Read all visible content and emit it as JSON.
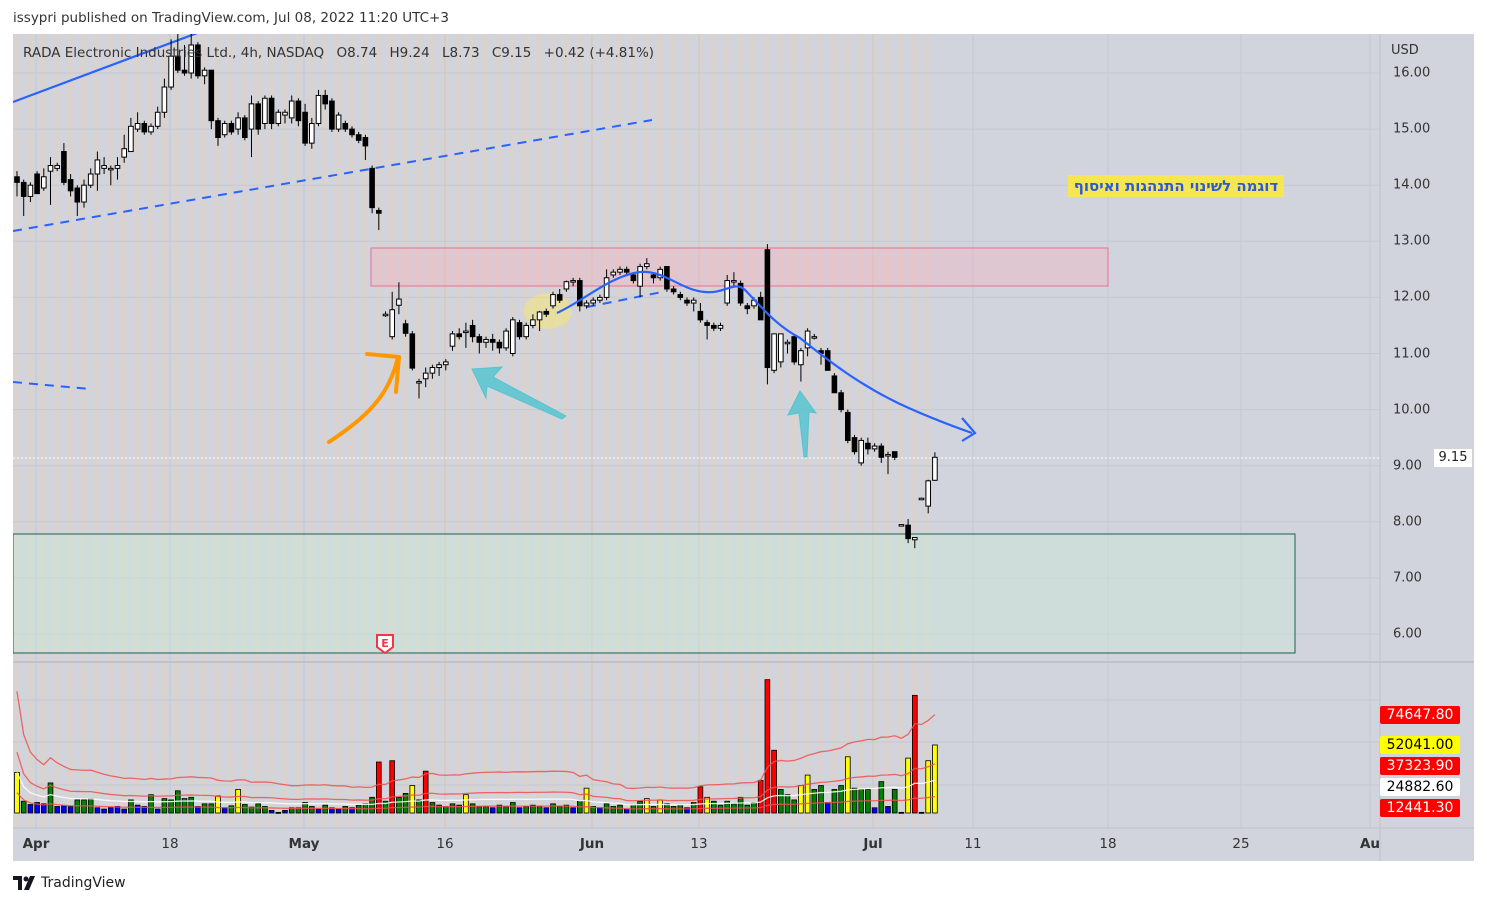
{
  "header": {
    "published": "issypri published on TradingView.com, Jul 08, 2022 11:20 UTC+3"
  },
  "legend": {
    "symbol": "RADA Electronic Industries Ltd., 4h, NASDAQ",
    "open": "O8.74",
    "high": "H9.24",
    "low": "L8.73",
    "close": "C9.15",
    "change": "+0.42 (+4.81%)"
  },
  "note": {
    "text": "דוגמה לשינוי התנהגות ואיסוף",
    "bg": "#f7e653",
    "color": "#2a5bd7"
  },
  "earnings_marker": {
    "label": "E",
    "color": "#f23645"
  },
  "footer": {
    "brand": "TradingView"
  },
  "colors": {
    "up_body": "#ffffff",
    "down_body": "#000000",
    "trendline": "#2962ff",
    "supply_zone": "#f48fb1",
    "demand_zone": "#1f5f50",
    "orange_arrow": "#ff9800",
    "cyan_arrow": "#4fc3d0",
    "vol_green": "#008000",
    "vol_blue": "#0000ff",
    "vol_red": "#ff0000",
    "vol_yellow": "#ffff00",
    "vol_black": "#000000",
    "ma_red": "#f05050",
    "ma_white": "#ffffff"
  },
  "chart_data": {
    "type": "candlestick",
    "title": "RADA Electronic Industries Ltd., 4h, NASDAQ",
    "currency": "USD",
    "y_axis": {
      "ticks": [
        "16.00",
        "15.00",
        "14.00",
        "13.00",
        "12.00",
        "11.00",
        "10.00",
        "9.00",
        "8.00",
        "7.00",
        "6.00"
      ],
      "range": [
        5.2,
        16.7
      ]
    },
    "x_axis": {
      "ticks": [
        {
          "label": "Apr",
          "month": true
        },
        {
          "label": "18"
        },
        {
          "label": "May",
          "month": true
        },
        {
          "label": "16"
        },
        {
          "label": "Jun",
          "month": true
        },
        {
          "label": "13"
        },
        {
          "label": "Jul",
          "month": true
        },
        {
          "label": "11"
        },
        {
          "label": "18"
        },
        {
          "label": "25"
        },
        {
          "label": "Au",
          "month": true
        }
      ]
    },
    "last_price": "9.15",
    "grid": true,
    "ohlc": [
      [
        14.15,
        14.25,
        13.8,
        14.05
      ],
      [
        14.05,
        14.1,
        13.45,
        13.8
      ],
      [
        13.8,
        14.05,
        13.7,
        14.0
      ],
      [
        14.2,
        14.25,
        13.9,
        13.85
      ],
      [
        13.95,
        14.3,
        13.9,
        14.15
      ],
      [
        14.25,
        14.5,
        13.65,
        14.35
      ],
      [
        14.3,
        14.4,
        14.25,
        14.35
      ],
      [
        14.6,
        14.75,
        14.0,
        14.05
      ],
      [
        14.1,
        14.2,
        13.8,
        13.9
      ],
      [
        13.95,
        14.0,
        13.45,
        13.7
      ],
      [
        13.7,
        14.1,
        13.6,
        14.0
      ],
      [
        14.0,
        14.3,
        13.95,
        14.2
      ],
      [
        14.2,
        14.6,
        13.9,
        14.45
      ],
      [
        14.3,
        14.5,
        14.2,
        14.35
      ],
      [
        14.3,
        14.35,
        14.0,
        14.3
      ],
      [
        14.3,
        14.5,
        14.1,
        14.35
      ],
      [
        14.5,
        14.9,
        14.4,
        14.65
      ],
      [
        14.6,
        15.2,
        14.6,
        15.05
      ],
      [
        15.0,
        15.3,
        14.95,
        15.1
      ],
      [
        15.1,
        15.15,
        14.9,
        14.95
      ],
      [
        14.95,
        15.1,
        14.9,
        15.05
      ],
      [
        15.05,
        15.4,
        15.0,
        15.3
      ],
      [
        15.3,
        15.9,
        15.2,
        15.75
      ],
      [
        15.75,
        16.6,
        15.7,
        16.3
      ],
      [
        16.3,
        16.9,
        16.0,
        16.05
      ],
      [
        16.05,
        16.5,
        15.95,
        16.0
      ],
      [
        16.0,
        16.9,
        15.9,
        16.5
      ],
      [
        16.5,
        16.55,
        15.9,
        15.95
      ],
      [
        15.95,
        16.1,
        15.8,
        16.05
      ],
      [
        16.05,
        16.05,
        15.0,
        15.15
      ],
      [
        15.15,
        15.2,
        14.7,
        14.85
      ],
      [
        14.9,
        15.15,
        14.85,
        15.1
      ],
      [
        15.1,
        15.15,
        14.9,
        14.95
      ],
      [
        15.0,
        15.3,
        14.9,
        15.2
      ],
      [
        15.2,
        15.25,
        14.8,
        14.85
      ],
      [
        15.0,
        15.6,
        14.5,
        15.45
      ],
      [
        15.45,
        15.5,
        14.9,
        15.0
      ],
      [
        15.1,
        15.6,
        15.0,
        15.55
      ],
      [
        15.55,
        15.6,
        15.0,
        15.1
      ],
      [
        15.1,
        15.35,
        15.05,
        15.3
      ],
      [
        15.25,
        15.35,
        15.1,
        15.3
      ],
      [
        15.2,
        15.6,
        15.1,
        15.5
      ],
      [
        15.5,
        15.55,
        15.05,
        15.15
      ],
      [
        15.3,
        15.45,
        14.7,
        14.75
      ],
      [
        14.75,
        15.2,
        14.65,
        15.1
      ],
      [
        15.1,
        15.7,
        15.05,
        15.6
      ],
      [
        15.6,
        15.7,
        15.35,
        15.45
      ],
      [
        15.5,
        15.55,
        14.95,
        15.0
      ],
      [
        15.0,
        15.3,
        14.95,
        15.25
      ],
      [
        15.1,
        15.15,
        14.95,
        15.0
      ],
      [
        15.0,
        15.05,
        14.85,
        14.9
      ],
      [
        14.9,
        14.95,
        14.75,
        14.8
      ],
      [
        14.85,
        14.9,
        14.45,
        14.7
      ],
      [
        14.3,
        14.35,
        13.5,
        13.6
      ],
      [
        13.55,
        13.6,
        13.2,
        13.5
      ],
      [
        11.7,
        11.75,
        11.65,
        11.7
      ],
      [
        11.3,
        12.1,
        11.25,
        11.78
      ],
      [
        11.86,
        12.27,
        11.7,
        11.97
      ],
      [
        11.53,
        11.6,
        11.3,
        11.36
      ],
      [
        11.35,
        11.4,
        10.7,
        10.74
      ],
      [
        10.5,
        10.55,
        10.2,
        10.5
      ],
      [
        10.55,
        10.75,
        10.4,
        10.65
      ],
      [
        10.65,
        10.8,
        10.55,
        10.75
      ],
      [
        10.75,
        10.85,
        10.6,
        10.8
      ],
      [
        10.8,
        10.9,
        10.7,
        10.85
      ],
      [
        11.13,
        11.4,
        11.05,
        11.35
      ],
      [
        11.35,
        11.45,
        11.25,
        11.3
      ],
      [
        11.4,
        11.55,
        11.1,
        11.4
      ],
      [
        11.5,
        11.6,
        11.2,
        11.3
      ],
      [
        11.3,
        11.35,
        11.0,
        11.2
      ],
      [
        11.2,
        11.3,
        11.1,
        11.25
      ],
      [
        11.25,
        11.35,
        11.05,
        11.2
      ],
      [
        11.2,
        11.25,
        11.0,
        11.1
      ],
      [
        11.1,
        11.45,
        11.05,
        11.4
      ],
      [
        11.0,
        11.65,
        10.95,
        11.6
      ],
      [
        11.55,
        11.6,
        11.25,
        11.3
      ],
      [
        11.3,
        11.55,
        11.25,
        11.5
      ],
      [
        11.5,
        11.7,
        11.45,
        11.6
      ],
      [
        11.6,
        11.76,
        11.4,
        11.74
      ],
      [
        11.75,
        11.8,
        11.65,
        11.7
      ],
      [
        11.85,
        12.1,
        11.8,
        12.05
      ],
      [
        12.05,
        12.15,
        11.9,
        11.95
      ],
      [
        12.15,
        12.3,
        12.1,
        12.28
      ],
      [
        12.3,
        12.35,
        12.2,
        12.3
      ],
      [
        12.3,
        12.35,
        11.75,
        11.85
      ],
      [
        11.85,
        11.95,
        11.8,
        11.9
      ],
      [
        11.9,
        12.0,
        11.85,
        11.95
      ],
      [
        11.95,
        12.05,
        11.9,
        12.0
      ],
      [
        12.0,
        12.5,
        11.95,
        12.35
      ],
      [
        12.4,
        12.5,
        12.35,
        12.45
      ],
      [
        12.45,
        12.55,
        12.4,
        12.5
      ],
      [
        12.5,
        12.55,
        12.4,
        12.45
      ],
      [
        12.4,
        12.45,
        12.25,
        12.3
      ],
      [
        12.2,
        12.6,
        12.0,
        12.55
      ],
      [
        12.55,
        12.7,
        12.5,
        12.6
      ],
      [
        12.4,
        12.45,
        12.25,
        12.35
      ],
      [
        12.35,
        12.55,
        12.3,
        12.5
      ],
      [
        12.55,
        12.55,
        12.1,
        12.15
      ],
      [
        12.15,
        12.2,
        12.05,
        12.1
      ],
      [
        12.05,
        12.1,
        11.95,
        12.0
      ],
      [
        11.95,
        12.0,
        11.85,
        11.9
      ],
      [
        11.9,
        12.0,
        11.75,
        11.95
      ],
      [
        11.75,
        11.9,
        11.55,
        11.6
      ],
      [
        11.55,
        11.6,
        11.25,
        11.5
      ],
      [
        11.5,
        11.55,
        11.4,
        11.45
      ],
      [
        11.45,
        11.55,
        11.4,
        11.5
      ],
      [
        11.9,
        12.4,
        11.85,
        12.3
      ],
      [
        12.3,
        12.45,
        12.2,
        12.3
      ],
      [
        12.25,
        12.3,
        11.85,
        11.9
      ],
      [
        11.85,
        11.9,
        11.7,
        11.8
      ],
      [
        11.85,
        12.0,
        11.8,
        11.95
      ],
      [
        12.0,
        12.1,
        11.6,
        11.6
      ],
      [
        12.85,
        12.95,
        10.45,
        10.75
      ],
      [
        10.7,
        11.35,
        10.65,
        11.35
      ],
      [
        10.85,
        11.35,
        10.75,
        11.35
      ],
      [
        11.2,
        11.25,
        11.0,
        11.2
      ],
      [
        11.3,
        11.35,
        10.8,
        10.85
      ],
      [
        10.8,
        11.1,
        10.5,
        11.05
      ],
      [
        11.1,
        11.45,
        10.95,
        11.4
      ],
      [
        11.3,
        11.35,
        11.25,
        11.3
      ],
      [
        11.05,
        11.1,
        10.8,
        11.0
      ],
      [
        11.05,
        11.1,
        10.7,
        10.7
      ],
      [
        10.6,
        10.65,
        10.3,
        10.3
      ],
      [
        10.3,
        10.35,
        9.95,
        10.0
      ],
      [
        9.95,
        10.0,
        9.4,
        9.45
      ],
      [
        9.5,
        9.55,
        9.2,
        9.25
      ],
      [
        9.05,
        9.5,
        9.0,
        9.45
      ],
      [
        9.4,
        9.5,
        9.2,
        9.3
      ],
      [
        9.3,
        9.4,
        9.25,
        9.35
      ],
      [
        9.35,
        9.4,
        9.05,
        9.15
      ],
      [
        9.2,
        9.25,
        8.85,
        9.2
      ],
      [
        9.25,
        9.25,
        9.1,
        9.15
      ],
      [
        7.95,
        7.96,
        7.94,
        7.95
      ],
      [
        7.94,
        8.05,
        7.62,
        7.7
      ],
      [
        7.68,
        7.73,
        7.53,
        7.72
      ],
      [
        8.42,
        8.43,
        8.41,
        8.42
      ],
      [
        8.28,
        8.75,
        8.15,
        8.73
      ],
      [
        8.74,
        9.24,
        8.73,
        9.15
      ]
    ],
    "volume": {
      "values": [
        31000,
        9000,
        6500,
        8000,
        7000,
        23000,
        5000,
        5500,
        5000,
        10000,
        10000,
        11000,
        4000,
        3000,
        4000,
        5000,
        3000,
        10000,
        6000,
        5000,
        14000,
        3000,
        11000,
        10000,
        17000,
        11000,
        12000,
        5000,
        7000,
        7000,
        13000,
        4000,
        5500,
        18000,
        6500,
        4500,
        7000,
        5000,
        2000,
        500,
        2000,
        4000,
        4000,
        8000,
        5000,
        3000,
        6000,
        4000,
        3000,
        5000,
        4000,
        6000,
        7000,
        12000,
        39000,
        9000,
        40000,
        12000,
        15000,
        21000,
        10000,
        32000,
        8000,
        6000,
        5000,
        7000,
        6000,
        14000,
        7000,
        5000,
        5000,
        4000,
        6000,
        5000,
        8000,
        4000,
        5000,
        6000,
        5000,
        4000,
        7000,
        5000,
        6000,
        4000,
        9000,
        19000,
        5000,
        4000,
        7000,
        5000,
        6000,
        3000,
        6000,
        9000,
        11000,
        5000,
        10000,
        7000,
        5000,
        6000,
        4000,
        8000,
        20000,
        12000,
        9000,
        6000,
        9000,
        7000,
        12000,
        6000,
        8000,
        25000,
        102000,
        48000,
        18000,
        14000,
        10000,
        21000,
        29000,
        18000,
        21000,
        8000,
        18000,
        21000,
        43000,
        19000,
        18000,
        18000,
        4000,
        24000,
        5000,
        18000,
        500,
        42000,
        90000,
        500,
        40000,
        52041
      ],
      "colors": [
        "y",
        "g",
        "b",
        "b",
        "b",
        "g",
        "b",
        "b",
        "b",
        "g",
        "g",
        "g",
        "b",
        "b",
        "b",
        "b",
        "b",
        "g",
        "b",
        "b",
        "g",
        "b",
        "g",
        "g",
        "g",
        "g",
        "g",
        "b",
        "g",
        "g",
        "y",
        "b",
        "g",
        "y",
        "g",
        "g",
        "g",
        "g",
        "b",
        "k",
        "b",
        "g",
        "g",
        "g",
        "g",
        "b",
        "g",
        "b",
        "b",
        "g",
        "b",
        "g",
        "g",
        "g",
        "r",
        "g",
        "r",
        "g",
        "g",
        "y",
        "g",
        "r",
        "g",
        "g",
        "g",
        "g",
        "g",
        "y",
        "g",
        "g",
        "g",
        "b",
        "g",
        "g",
        "g",
        "b",
        "g",
        "g",
        "g",
        "b",
        "g",
        "g",
        "g",
        "b",
        "g",
        "y",
        "g",
        "b",
        "g",
        "g",
        "g",
        "b",
        "g",
        "g",
        "y",
        "g",
        "y",
        "g",
        "g",
        "g",
        "b",
        "g",
        "r",
        "y",
        "g",
        "g",
        "g",
        "g",
        "g",
        "g",
        "g",
        "r",
        "r",
        "r",
        "g",
        "g",
        "g",
        "y",
        "y",
        "g",
        "g",
        "b",
        "g",
        "g",
        "y",
        "g",
        "g",
        "g",
        "b",
        "g",
        "b",
        "g",
        "k",
        "y",
        "r",
        "k",
        "y",
        "y"
      ],
      "labels": [
        {
          "value": "74647.80",
          "bg": "#ff0000",
          "fg": "#ffffff"
        },
        {
          "value": "52041.00",
          "bg": "#ffff00",
          "fg": "#000000"
        },
        {
          "value": "37323.90",
          "bg": "#ff0000",
          "fg": "#ffffff"
        },
        {
          "value": "24882.60",
          "bg": "#ffffff",
          "fg": "#000000"
        },
        {
          "value": "12441.30",
          "bg": "#ff0000",
          "fg": "#ffffff"
        }
      ]
    }
  }
}
